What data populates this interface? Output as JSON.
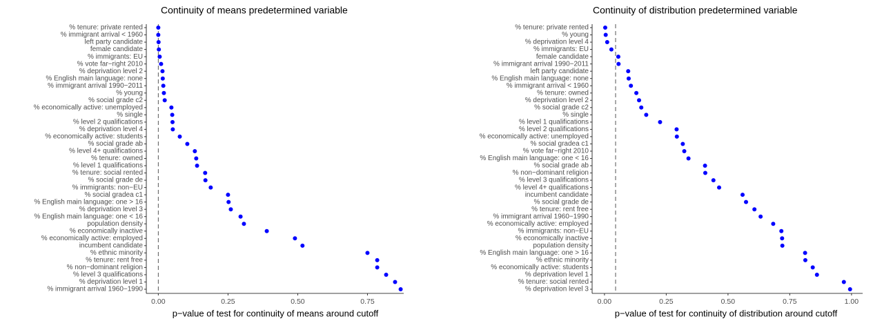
{
  "chart_data": [
    {
      "type": "dot",
      "title": "Continuity of means predetermined variable",
      "x_label": "p−value of test for continuity of means around cutoff",
      "categories": [
        "% tenure: private rented",
        "% immigrant arrival < 1960",
        "left party candidate",
        "female candidate",
        "% immigrants: EU",
        "% vote far−right 2010",
        "% deprivation level 2",
        "% English main language: none",
        "% immigrant arrival 1990−2011",
        "% young",
        "% social grade c2",
        "% economically active: unemployed",
        "% single",
        "% level 2 qualifications",
        "% deprivation level 4",
        "% economically active: students",
        "% social grade ab",
        "% level 4+ qualifications",
        "% tenure: owned",
        "% level 1 qualifications",
        "% tenure: social rented",
        "% social grade de",
        "% immigrants: non−EU",
        "% social gradea c1",
        "% English main language: one > 16",
        "% deprivation level 3",
        "% English main language: one < 16",
        "population density",
        "% economically inactive",
        "% economically active: employed",
        "incumbent candidate",
        "% ethnic minority",
        "% tenure: rent free",
        "% non−dominant religion",
        "% level 3 qualifications",
        "% deprivation level 1",
        "% immigrant arrival 1960−1990"
      ],
      "values": [
        0.0,
        0.0,
        0.001,
        0.002,
        0.005,
        0.01,
        0.015,
        0.016,
        0.018,
        0.02,
        0.023,
        0.047,
        0.05,
        0.051,
        0.052,
        0.077,
        0.104,
        0.131,
        0.136,
        0.139,
        0.168,
        0.169,
        0.188,
        0.25,
        0.252,
        0.26,
        0.295,
        0.307,
        0.389,
        0.49,
        0.517,
        0.75,
        0.785,
        0.785,
        0.817,
        0.849,
        0.869
      ],
      "color": "#0000ff",
      "reference_line": 0,
      "xlim": [
        -0.043,
        0.88
      ],
      "xticks": [
        {
          "value": 0,
          "label": "0.00"
        },
        {
          "value": 0.25,
          "label": "0.25"
        },
        {
          "value": 0.5,
          "label": "0.50"
        },
        {
          "value": 0.75,
          "label": "0.75"
        }
      ]
    },
    {
      "type": "dot",
      "title": "Continuity of distribution predetermined variable",
      "x_label": "p−value of test for continuity of distribution around cutoff",
      "categories": [
        "% tenure: private rented",
        "% young",
        "% deprivation level 4",
        "% immigrants: EU",
        "female candidate",
        "% immigrant arrival 1990−2011",
        "left party candidate",
        "% English main language: none",
        "% immigrant arrival < 1960",
        "% tenure: owned",
        "% deprivation level 2",
        "% social grade c2",
        "% single",
        "% level 1 qualifications",
        "% level 2 qualifications",
        "% economically active: unemployed",
        "% social gradea c1",
        "% vote far−right 2010",
        "% English main language: one < 16",
        "% social grade ab",
        "% non−dominant religion",
        "% level 3 qualifications",
        "% level 4+ qualifications",
        "incumbent candidate",
        "% social grade de",
        "% tenure: rent free",
        "% immigrant arrival 1960−1990",
        "% economically active: employed",
        "% immigrants: non−EU",
        "% economically inactive",
        "population density",
        "% English main language: one > 16",
        "% ethnic minority",
        "% economically active: students",
        "% deprivation level 1",
        "% tenure: social rented",
        "% deprivation level 3"
      ],
      "values": [
        0.003,
        0.005,
        0.011,
        0.028,
        0.056,
        0.057,
        0.096,
        0.098,
        0.107,
        0.129,
        0.14,
        0.149,
        0.169,
        0.225,
        0.292,
        0.293,
        0.317,
        0.323,
        0.34,
        0.407,
        0.408,
        0.441,
        0.464,
        0.559,
        0.573,
        0.607,
        0.632,
        0.683,
        0.716,
        0.719,
        0.72,
        0.812,
        0.813,
        0.843,
        0.86,
        0.969,
        0.994
      ],
      "color": "#0000ff",
      "reference_line": 0.045,
      "xlim": [
        -0.05,
        1.045
      ],
      "xticks": [
        {
          "value": 0,
          "label": "0.00"
        },
        {
          "value": 0.25,
          "label": "0.25"
        },
        {
          "value": 0.5,
          "label": "0.50"
        },
        {
          "value": 0.75,
          "label": "0.75"
        },
        {
          "value": 1,
          "label": "1.00"
        }
      ]
    }
  ]
}
